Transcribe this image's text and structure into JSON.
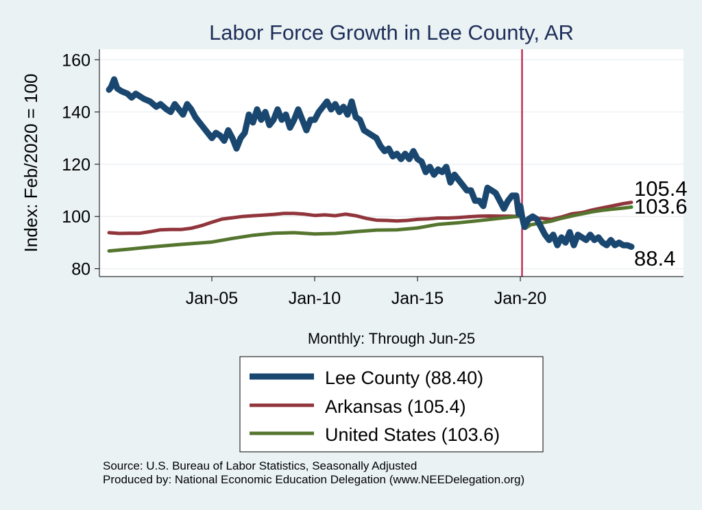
{
  "chart_data": {
    "type": "line",
    "title": "Labor Force Growth in Lee  County, AR",
    "xlabel": "Monthly: Through Jun-25",
    "ylabel": "Index: Feb/2020 = 100",
    "x_range": [
      "Jan-00",
      "Jun-25"
    ],
    "ylim": [
      77,
      164
    ],
    "x_ticks": [
      {
        "label": "Jan-05",
        "t": 2005.0
      },
      {
        "label": "Jan-10",
        "t": 2010.0
      },
      {
        "label": "Jan-15",
        "t": 2015.0
      },
      {
        "label": "Jan-20",
        "t": 2020.0
      }
    ],
    "y_ticks": [
      80,
      100,
      120,
      140,
      160
    ],
    "grid": true,
    "reference_line": {
      "t": 2020.083,
      "color": "#b2002c"
    },
    "series": [
      {
        "name": "Lee County",
        "color": "#1a476f",
        "end_label": "88.4",
        "legend_label": "Lee  County (88.40)",
        "points": [
          [
            2000.0,
            148.5
          ],
          [
            2000.1,
            149.5
          ],
          [
            2000.25,
            152.5
          ],
          [
            2000.4,
            149
          ],
          [
            2000.6,
            148
          ],
          [
            2000.9,
            147
          ],
          [
            2001.1,
            145.5
          ],
          [
            2001.3,
            147
          ],
          [
            2001.5,
            146
          ],
          [
            2001.7,
            145
          ],
          [
            2002.0,
            144
          ],
          [
            2002.3,
            142
          ],
          [
            2002.5,
            143
          ],
          [
            2002.8,
            141
          ],
          [
            2003.0,
            140
          ],
          [
            2003.2,
            143
          ],
          [
            2003.4,
            141
          ],
          [
            2003.6,
            139
          ],
          [
            2003.8,
            143
          ],
          [
            2004.0,
            141
          ],
          [
            2004.2,
            138
          ],
          [
            2004.4,
            136
          ],
          [
            2004.6,
            134
          ],
          [
            2004.8,
            132
          ],
          [
            2005.0,
            130
          ],
          [
            2005.2,
            132
          ],
          [
            2005.4,
            131
          ],
          [
            2005.6,
            129
          ],
          [
            2005.8,
            133
          ],
          [
            2006.0,
            130
          ],
          [
            2006.2,
            126
          ],
          [
            2006.4,
            130
          ],
          [
            2006.6,
            132
          ],
          [
            2006.8,
            139
          ],
          [
            2007.0,
            136
          ],
          [
            2007.2,
            141
          ],
          [
            2007.4,
            137
          ],
          [
            2007.6,
            140
          ],
          [
            2007.8,
            135
          ],
          [
            2008.0,
            137
          ],
          [
            2008.2,
            141
          ],
          [
            2008.4,
            137
          ],
          [
            2008.6,
            139
          ],
          [
            2008.8,
            134
          ],
          [
            2009.0,
            137
          ],
          [
            2009.2,
            141
          ],
          [
            2009.4,
            137
          ],
          [
            2009.6,
            133
          ],
          [
            2009.8,
            137
          ],
          [
            2010.0,
            137
          ],
          [
            2010.2,
            140
          ],
          [
            2010.4,
            142
          ],
          [
            2010.6,
            144
          ],
          [
            2010.8,
            141
          ],
          [
            2011.0,
            143
          ],
          [
            2011.2,
            140
          ],
          [
            2011.4,
            142
          ],
          [
            2011.6,
            139
          ],
          [
            2011.8,
            144
          ],
          [
            2012.0,
            138
          ],
          [
            2012.2,
            137
          ],
          [
            2012.4,
            133
          ],
          [
            2012.6,
            132
          ],
          [
            2012.8,
            131
          ],
          [
            2013.0,
            130
          ],
          [
            2013.2,
            127
          ],
          [
            2013.4,
            125
          ],
          [
            2013.6,
            126
          ],
          [
            2013.8,
            123
          ],
          [
            2014.0,
            124
          ],
          [
            2014.2,
            122
          ],
          [
            2014.4,
            124
          ],
          [
            2014.6,
            122
          ],
          [
            2014.8,
            125
          ],
          [
            2015.0,
            122
          ],
          [
            2015.2,
            121
          ],
          [
            2015.4,
            117
          ],
          [
            2015.6,
            119
          ],
          [
            2015.8,
            116
          ],
          [
            2016.0,
            118
          ],
          [
            2016.2,
            117
          ],
          [
            2016.4,
            119
          ],
          [
            2016.6,
            113
          ],
          [
            2016.8,
            116
          ],
          [
            2017.0,
            114
          ],
          [
            2017.2,
            112
          ],
          [
            2017.4,
            110
          ],
          [
            2017.6,
            110
          ],
          [
            2017.8,
            106
          ],
          [
            2018.0,
            106
          ],
          [
            2018.2,
            104
          ],
          [
            2018.4,
            111
          ],
          [
            2018.6,
            110
          ],
          [
            2018.8,
            109
          ],
          [
            2019.0,
            106
          ],
          [
            2019.2,
            103
          ],
          [
            2019.4,
            106
          ],
          [
            2019.6,
            108
          ],
          [
            2019.8,
            108
          ],
          [
            2019.92,
            101
          ],
          [
            2020.0,
            104
          ],
          [
            2020.083,
            100
          ],
          [
            2020.2,
            96
          ],
          [
            2020.4,
            99
          ],
          [
            2020.6,
            100
          ],
          [
            2020.8,
            99
          ],
          [
            2021.0,
            96
          ],
          [
            2021.2,
            93
          ],
          [
            2021.4,
            91
          ],
          [
            2021.6,
            93
          ],
          [
            2021.8,
            89
          ],
          [
            2022.0,
            92
          ],
          [
            2022.2,
            90
          ],
          [
            2022.4,
            94
          ],
          [
            2022.6,
            89
          ],
          [
            2022.8,
            93
          ],
          [
            2023.0,
            92
          ],
          [
            2023.2,
            91
          ],
          [
            2023.4,
            93
          ],
          [
            2023.6,
            91
          ],
          [
            2023.8,
            92
          ],
          [
            2024.0,
            90
          ],
          [
            2024.2,
            89
          ],
          [
            2024.4,
            91
          ],
          [
            2024.6,
            89
          ],
          [
            2024.8,
            90
          ],
          [
            2025.0,
            89
          ],
          [
            2025.2,
            89
          ],
          [
            2025.4,
            88.4
          ]
        ]
      },
      {
        "name": "Arkansas",
        "color": "#90353b",
        "end_label": "105.4",
        "legend_label": "Arkansas (105.4)",
        "points": [
          [
            2000.0,
            93.8
          ],
          [
            2000.5,
            93.5
          ],
          [
            2001.0,
            93.6
          ],
          [
            2001.5,
            93.6
          ],
          [
            2002.0,
            94.2
          ],
          [
            2002.5,
            94.9
          ],
          [
            2003.0,
            95
          ],
          [
            2003.5,
            95
          ],
          [
            2004.0,
            95.5
          ],
          [
            2004.5,
            96.5
          ],
          [
            2005.0,
            97.8
          ],
          [
            2005.5,
            99
          ],
          [
            2006.0,
            99.5
          ],
          [
            2006.5,
            100
          ],
          [
            2007.0,
            100.3
          ],
          [
            2007.5,
            100.5
          ],
          [
            2008.0,
            100.8
          ],
          [
            2008.5,
            101.2
          ],
          [
            2009.0,
            101.2
          ],
          [
            2009.5,
            100.9
          ],
          [
            2010.0,
            100.4
          ],
          [
            2010.5,
            100.6
          ],
          [
            2011.0,
            100.3
          ],
          [
            2011.5,
            100.9
          ],
          [
            2012.0,
            100.3
          ],
          [
            2012.5,
            99.3
          ],
          [
            2013.0,
            98.6
          ],
          [
            2013.5,
            98.5
          ],
          [
            2014.0,
            98.3
          ],
          [
            2014.5,
            98.5
          ],
          [
            2015.0,
            98.9
          ],
          [
            2015.5,
            99.1
          ],
          [
            2016.0,
            99.4
          ],
          [
            2016.5,
            99.4
          ],
          [
            2017.0,
            99.6
          ],
          [
            2017.5,
            99.9
          ],
          [
            2018.0,
            100.1
          ],
          [
            2018.5,
            100.2
          ],
          [
            2019.0,
            100.1
          ],
          [
            2019.5,
            100.1
          ],
          [
            2020.083,
            100
          ],
          [
            2020.25,
            97
          ],
          [
            2020.5,
            98.8
          ],
          [
            2021.0,
            99.3
          ],
          [
            2021.5,
            98.9
          ],
          [
            2022.0,
            99.8
          ],
          [
            2022.5,
            101
          ],
          [
            2023.0,
            101.5
          ],
          [
            2023.5,
            102.5
          ],
          [
            2024.0,
            103.3
          ],
          [
            2024.5,
            104.1
          ],
          [
            2025.0,
            104.9
          ],
          [
            2025.4,
            105.4
          ]
        ]
      },
      {
        "name": "United States",
        "color": "#55752f",
        "end_label": "103.6",
        "legend_label": "United States (103.6)",
        "points": [
          [
            2000.0,
            86.8
          ],
          [
            2001.0,
            87.5
          ],
          [
            2002.0,
            88.3
          ],
          [
            2003.0,
            89
          ],
          [
            2004.0,
            89.6
          ],
          [
            2005.0,
            90.2
          ],
          [
            2006.0,
            91.6
          ],
          [
            2007.0,
            92.8
          ],
          [
            2008.0,
            93.6
          ],
          [
            2009.0,
            93.8
          ],
          [
            2010.0,
            93.3
          ],
          [
            2011.0,
            93.5
          ],
          [
            2012.0,
            94.2
          ],
          [
            2013.0,
            94.8
          ],
          [
            2014.0,
            94.9
          ],
          [
            2015.0,
            95.6
          ],
          [
            2016.0,
            97
          ],
          [
            2017.0,
            97.6
          ],
          [
            2018.0,
            98.4
          ],
          [
            2019.0,
            99.3
          ],
          [
            2020.083,
            100.2
          ],
          [
            2020.25,
            95.5
          ],
          [
            2020.5,
            96.8
          ],
          [
            2021.0,
            97.5
          ],
          [
            2021.5,
            98.2
          ],
          [
            2022.0,
            99.3
          ],
          [
            2022.5,
            100.2
          ],
          [
            2023.0,
            101
          ],
          [
            2023.5,
            101.8
          ],
          [
            2024.0,
            102.4
          ],
          [
            2024.5,
            102.8
          ],
          [
            2025.0,
            103.2
          ],
          [
            2025.4,
            103.6
          ]
        ]
      }
    ],
    "legend": {
      "position": "bottom-center",
      "entries": [
        "Lee  County (88.40)",
        "Arkansas (105.4)",
        "United States (103.6)"
      ]
    }
  },
  "footer": {
    "source": "Source: U.S. Bureau of Labor Statistics, Seasonally Adjusted",
    "produced": "Produced by: National Economic Education Delegation (www.NEEDelegation.org)"
  }
}
